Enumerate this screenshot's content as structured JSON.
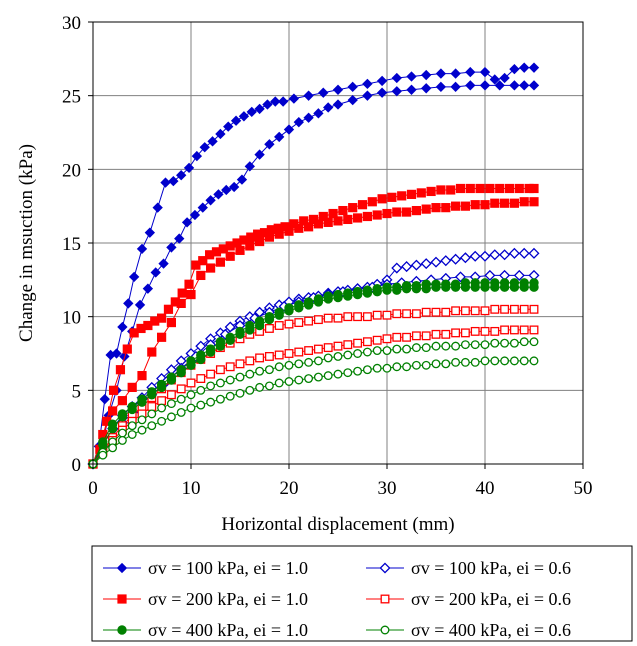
{
  "chart_data": {
    "type": "line",
    "title": "",
    "xlabel": "Horizontal displacement (mm)",
    "ylabel": "Change in msuction  (kPa)",
    "xlim": [
      0,
      50
    ],
    "ylim": [
      0,
      30
    ],
    "xticks": [
      "0",
      "10",
      "20",
      "30",
      "40",
      "50"
    ],
    "yticks": [
      "0",
      "5",
      "10",
      "15",
      "20",
      "25",
      "30"
    ],
    "grid": true,
    "legend_position": "bottom",
    "series": [
      {
        "name": "σv = 100 kPa, ei = 1.0",
        "color": "#0000cc",
        "marker": "diamond-filled",
        "x": [
          0,
          0.6,
          1.2,
          1.8,
          2.4,
          3,
          3.6,
          4.2,
          5,
          5.8,
          6.6,
          7.4,
          8.2,
          9,
          9.8,
          10.6,
          11.4,
          12.2,
          13,
          13.8,
          14.6,
          15.4,
          16.2,
          17,
          17.8,
          18.6,
          19.4,
          20.5,
          22,
          23.5,
          25,
          26.5,
          28,
          29.5,
          31,
          32.5,
          34,
          35.5,
          37,
          38.5,
          40,
          41,
          42,
          43,
          44,
          45
        ],
        "y": [
          0,
          1.2,
          4.4,
          7.4,
          7.5,
          9.3,
          10.9,
          12.7,
          14.6,
          15.7,
          17.4,
          19.1,
          19.2,
          19.6,
          20.1,
          20.9,
          21.5,
          21.9,
          22.4,
          22.9,
          23.3,
          23.6,
          23.9,
          24.1,
          24.4,
          24.6,
          24.6,
          24.8,
          25.0,
          25.2,
          25.4,
          25.6,
          25.8,
          26.0,
          26.2,
          26.3,
          26.4,
          26.5,
          26.5,
          26.6,
          26.6,
          26.1,
          26.2,
          26.8,
          26.9,
          26.9
        ]
      },
      {
        "name": "σv = 100 kPa, ei = 1.0",
        "color": "#0000cc",
        "marker": "diamond-filled",
        "x": [
          0,
          0.8,
          1.6,
          2.4,
          3.2,
          4,
          4.8,
          5.6,
          6.4,
          7.2,
          8,
          8.8,
          9.6,
          10.4,
          11.2,
          12,
          12.8,
          13.6,
          14.4,
          15.2,
          16,
          17,
          18,
          19,
          20,
          21,
          22,
          23,
          24,
          25,
          26.5,
          28,
          29.5,
          31,
          32.5,
          34,
          35.5,
          37,
          38.5,
          40,
          41.5,
          43,
          44,
          45
        ],
        "y": [
          0,
          0.8,
          3.3,
          5.0,
          7.3,
          9.0,
          10.8,
          11.9,
          13.0,
          13.6,
          14.7,
          15.3,
          16.4,
          16.9,
          17.4,
          17.9,
          18.3,
          18.6,
          18.8,
          19.3,
          20.2,
          21.0,
          21.7,
          22.2,
          22.7,
          23.2,
          23.5,
          23.8,
          24.2,
          24.4,
          24.7,
          25.0,
          25.2,
          25.3,
          25.4,
          25.5,
          25.6,
          25.6,
          25.7,
          25.7,
          25.7,
          25.7,
          25.7,
          25.7
        ]
      },
      {
        "name": "σv = 100 kPa, ei = 0.6",
        "color": "#0000cc",
        "marker": "diamond-open",
        "x": [
          0,
          1,
          2,
          3,
          4,
          5,
          6,
          7,
          8,
          9,
          10,
          11,
          12,
          13,
          14,
          15,
          16,
          17,
          18,
          19,
          20,
          21,
          22,
          23,
          24,
          25,
          26,
          27,
          28,
          29,
          30,
          31,
          32,
          33,
          34,
          35,
          36,
          37,
          38,
          39,
          40,
          41,
          42,
          43,
          44,
          45
        ],
        "y": [
          0,
          1.2,
          2.4,
          3.3,
          3.9,
          4.5,
          5.2,
          5.8,
          6.4,
          7.0,
          7.5,
          8.0,
          8.5,
          8.9,
          9.3,
          9.7,
          10.0,
          10.3,
          10.6,
          10.8,
          11.0,
          11.2,
          11.3,
          11.4,
          11.6,
          11.7,
          11.8,
          11.9,
          12.0,
          12.2,
          12.5,
          13.3,
          13.4,
          13.5,
          13.6,
          13.7,
          13.8,
          13.9,
          14.0,
          14.1,
          14.1,
          14.2,
          14.2,
          14.3,
          14.3,
          14.3
        ]
      },
      {
        "name": "σv = 100 kPa, ei = 0.6",
        "color": "#0000cc",
        "marker": "diamond-open",
        "x": [
          0,
          1.5,
          3,
          4.5,
          6,
          7.5,
          9,
          10.5,
          12,
          13.5,
          15,
          16.5,
          18,
          19.5,
          21,
          22.5,
          24,
          25.5,
          27,
          28.5,
          30,
          31.5,
          33,
          34.5,
          36,
          37.5,
          39,
          40.5,
          42,
          43.5,
          45
        ],
        "y": [
          0,
          1.5,
          2.8,
          3.8,
          4.7,
          5.6,
          6.5,
          7.3,
          8.1,
          8.8,
          9.4,
          9.9,
          10.3,
          10.7,
          11.0,
          11.3,
          11.5,
          11.7,
          11.9,
          12.0,
          12.2,
          12.3,
          12.4,
          12.5,
          12.6,
          12.7,
          12.7,
          12.8,
          12.8,
          12.8,
          12.8
        ]
      },
      {
        "name": "σv = 200 kPa, ei = 1.0",
        "color": "#ff0000",
        "marker": "square-filled",
        "x": [
          0,
          0.7,
          1.4,
          2.1,
          2.8,
          3.5,
          4.2,
          4.9,
          5.6,
          6.3,
          7,
          7.7,
          8.4,
          9.1,
          9.8,
          10.5,
          11.2,
          11.9,
          12.6,
          13.3,
          14,
          14.7,
          15.4,
          16.1,
          16.8,
          17.5,
          18.2,
          18.9,
          19.6,
          20.5,
          21.5,
          22.5,
          23.5,
          24.5,
          25.5,
          26.5,
          27.5,
          28.5,
          29.5,
          30.5,
          31.5,
          32.5,
          33.5,
          34.5,
          35.5,
          36.5,
          37.5,
          38.5,
          39.5,
          40.5,
          41.5,
          42.5,
          43.5,
          44.5,
          45
        ],
        "y": [
          0,
          1.0,
          2.9,
          5.0,
          6.4,
          7.8,
          8.9,
          9.2,
          9.4,
          9.7,
          9.9,
          10.5,
          11.0,
          11.6,
          12.2,
          13.5,
          13.8,
          14.2,
          14.4,
          14.6,
          14.8,
          15.0,
          15.2,
          15.4,
          15.6,
          15.7,
          15.9,
          16.0,
          16.1,
          16.3,
          16.5,
          16.6,
          16.8,
          17.0,
          17.2,
          17.4,
          17.6,
          17.8,
          18.0,
          18.1,
          18.2,
          18.3,
          18.4,
          18.5,
          18.6,
          18.6,
          18.7,
          18.7,
          18.7,
          18.7,
          18.7,
          18.7,
          18.7,
          18.7,
          18.7
        ]
      },
      {
        "name": "σv = 200 kPa, ei = 1.0",
        "color": "#ff0000",
        "marker": "square-filled",
        "x": [
          0,
          1,
          2,
          3,
          4,
          5,
          6,
          7,
          8,
          9,
          10,
          11,
          12,
          13,
          14,
          15,
          16,
          17,
          18,
          19,
          20,
          21,
          22,
          23,
          24,
          25,
          26,
          27,
          28,
          29,
          30,
          31,
          32,
          33,
          34,
          35,
          36,
          37,
          38,
          39,
          40,
          41,
          42,
          43,
          44,
          45
        ],
        "y": [
          0,
          2.0,
          3.6,
          4.3,
          5.2,
          6.0,
          7.6,
          8.6,
          9.6,
          10.9,
          11.5,
          12.8,
          13.3,
          13.7,
          14.1,
          14.5,
          14.8,
          15.1,
          15.4,
          15.6,
          15.8,
          16.0,
          16.1,
          16.3,
          16.4,
          16.5,
          16.6,
          16.7,
          16.8,
          16.9,
          17.0,
          17.1,
          17.1,
          17.2,
          17.3,
          17.4,
          17.4,
          17.5,
          17.5,
          17.6,
          17.6,
          17.7,
          17.7,
          17.7,
          17.8,
          17.8
        ]
      },
      {
        "name": "σv = 200 kPa, ei = 0.6",
        "color": "#ff0000",
        "marker": "square-open",
        "x": [
          0,
          1,
          2,
          3,
          4,
          5,
          6,
          7,
          8,
          9,
          10,
          11,
          12,
          13,
          14,
          15,
          16,
          17,
          18,
          19,
          20,
          21,
          22,
          23,
          24,
          25,
          26,
          27,
          28,
          29,
          30,
          31,
          32,
          33,
          34,
          35,
          36,
          37,
          38,
          39,
          40,
          41,
          42,
          43,
          44,
          45
        ],
        "y": [
          0,
          0.9,
          1.8,
          2.6,
          3.3,
          3.9,
          4.5,
          5.1,
          5.7,
          6.2,
          6.7,
          7.1,
          7.5,
          7.9,
          8.2,
          8.5,
          8.8,
          9.0,
          9.2,
          9.4,
          9.5,
          9.6,
          9.7,
          9.8,
          9.9,
          9.9,
          10.0,
          10.0,
          10.0,
          10.1,
          10.1,
          10.2,
          10.2,
          10.2,
          10.3,
          10.3,
          10.3,
          10.4,
          10.4,
          10.4,
          10.4,
          10.5,
          10.5,
          10.5,
          10.5,
          10.5
        ]
      },
      {
        "name": "σv = 200 kPa, ei = 0.6",
        "color": "#ff0000",
        "marker": "square-open",
        "x": [
          0,
          1,
          2,
          3,
          4,
          5,
          6,
          7,
          8,
          9,
          10,
          11,
          12,
          13,
          14,
          15,
          16,
          17,
          18,
          19,
          20,
          21,
          22,
          23,
          24,
          25,
          26,
          27,
          28,
          29,
          30,
          31,
          32,
          33,
          34,
          35,
          36,
          37,
          38,
          39,
          40,
          41,
          42,
          43,
          44,
          45
        ],
        "y": [
          0,
          0.8,
          1.6,
          2.3,
          2.9,
          3.4,
          3.9,
          4.3,
          4.7,
          5.1,
          5.5,
          5.8,
          6.1,
          6.4,
          6.6,
          6.8,
          7.0,
          7.2,
          7.3,
          7.4,
          7.5,
          7.6,
          7.7,
          7.8,
          7.9,
          8.0,
          8.1,
          8.2,
          8.3,
          8.4,
          8.5,
          8.6,
          8.6,
          8.7,
          8.7,
          8.8,
          8.8,
          8.9,
          8.9,
          9.0,
          9.0,
          9.0,
          9.1,
          9.1,
          9.1,
          9.1
        ]
      },
      {
        "name": "σv = 400 kPa, ei = 1.0",
        "color": "#008000",
        "marker": "circle-filled",
        "x": [
          0,
          1,
          2,
          3,
          4,
          5,
          6,
          7,
          8,
          9,
          10,
          11,
          12,
          13,
          14,
          15,
          16,
          17,
          18,
          19,
          20,
          21,
          22,
          23,
          24,
          25,
          26,
          27,
          28,
          29,
          30,
          31,
          32,
          33,
          34,
          35,
          36,
          37,
          38,
          39,
          40,
          41,
          42,
          43,
          44,
          45
        ],
        "y": [
          0,
          1.5,
          2.7,
          3.4,
          3.9,
          4.4,
          4.9,
          5.4,
          5.9,
          6.4,
          7.0,
          7.4,
          7.8,
          8.3,
          8.6,
          9.0,
          9.4,
          9.7,
          10.0,
          10.3,
          10.6,
          10.8,
          11.0,
          11.2,
          11.4,
          11.5,
          11.6,
          11.7,
          11.8,
          11.9,
          12.0,
          12.0,
          12.1,
          12.1,
          12.2,
          12.2,
          12.2,
          12.2,
          12.3,
          12.3,
          12.3,
          12.3,
          12.3,
          12.3,
          12.3,
          12.3
        ]
      },
      {
        "name": "σv = 400 kPa, ei = 1.0",
        "color": "#008000",
        "marker": "circle-filled",
        "x": [
          0,
          1,
          2,
          3,
          4,
          5,
          6,
          7,
          8,
          9,
          10,
          11,
          12,
          13,
          14,
          15,
          16,
          17,
          18,
          19,
          20,
          21,
          22,
          23,
          24,
          25,
          26,
          27,
          28,
          29,
          30,
          31,
          32,
          33,
          34,
          35,
          36,
          37,
          38,
          39,
          40,
          41,
          42,
          43,
          44,
          45
        ],
        "y": [
          0,
          1.3,
          2.4,
          3.2,
          3.7,
          4.2,
          4.7,
          5.2,
          5.7,
          6.2,
          6.7,
          7.1,
          7.6,
          8.0,
          8.4,
          8.8,
          9.1,
          9.4,
          9.8,
          10.1,
          10.4,
          10.6,
          10.8,
          11.0,
          11.2,
          11.3,
          11.4,
          11.5,
          11.6,
          11.7,
          11.8,
          11.8,
          11.9,
          11.9,
          11.9,
          12.0,
          12.0,
          12.0,
          12.0,
          12.0,
          12.0,
          12.0,
          12.0,
          12.0,
          12.0,
          12.0
        ]
      },
      {
        "name": "σv = 400 kPa, ei = 0.6",
        "color": "#008000",
        "marker": "circle-open",
        "x": [
          0,
          1,
          2,
          3,
          4,
          5,
          6,
          7,
          8,
          9,
          10,
          11,
          12,
          13,
          14,
          15,
          16,
          17,
          18,
          19,
          20,
          21,
          22,
          23,
          24,
          25,
          26,
          27,
          28,
          29,
          30,
          31,
          32,
          33,
          34,
          35,
          36,
          37,
          38,
          39,
          40,
          41,
          42,
          43,
          44,
          45
        ],
        "y": [
          0,
          0.8,
          1.5,
          2.1,
          2.6,
          3.0,
          3.4,
          3.8,
          4.1,
          4.4,
          4.7,
          5.0,
          5.3,
          5.5,
          5.7,
          5.9,
          6.1,
          6.3,
          6.4,
          6.6,
          6.7,
          6.8,
          6.9,
          7.0,
          7.2,
          7.3,
          7.4,
          7.5,
          7.6,
          7.7,
          7.7,
          7.8,
          7.8,
          7.9,
          7.9,
          8.0,
          8.0,
          8.0,
          8.1,
          8.1,
          8.1,
          8.2,
          8.2,
          8.2,
          8.3,
          8.3
        ]
      },
      {
        "name": "σv = 400 kPa, ei = 0.6",
        "color": "#008000",
        "marker": "circle-open",
        "x": [
          0,
          1,
          2,
          3,
          4,
          5,
          6,
          7,
          8,
          9,
          10,
          11,
          12,
          13,
          14,
          15,
          16,
          17,
          18,
          19,
          20,
          21,
          22,
          23,
          24,
          25,
          26,
          27,
          28,
          29,
          30,
          31,
          32,
          33,
          34,
          35,
          36,
          37,
          38,
          39,
          40,
          41,
          42,
          43,
          44,
          45
        ],
        "y": [
          0,
          0.6,
          1.1,
          1.6,
          2.0,
          2.3,
          2.6,
          2.9,
          3.2,
          3.5,
          3.8,
          4.0,
          4.2,
          4.4,
          4.6,
          4.8,
          5.0,
          5.2,
          5.3,
          5.5,
          5.6,
          5.7,
          5.8,
          5.9,
          6.0,
          6.1,
          6.2,
          6.3,
          6.4,
          6.5,
          6.5,
          6.6,
          6.6,
          6.7,
          6.7,
          6.8,
          6.8,
          6.9,
          6.9,
          6.9,
          7.0,
          7.0,
          7.0,
          7.0,
          7.0,
          7.0
        ]
      }
    ],
    "legend": [
      {
        "label": "σv = 100 kPa, ei = 1.0",
        "color": "#0000cc",
        "marker": "diamond-filled"
      },
      {
        "label": "σv = 100 kPa, ei = 0.6",
        "color": "#0000cc",
        "marker": "diamond-open"
      },
      {
        "label": "σv = 200 kPa, ei = 1.0",
        "color": "#ff0000",
        "marker": "square-filled"
      },
      {
        "label": "σv = 200 kPa, ei = 0.6",
        "color": "#ff0000",
        "marker": "square-open"
      },
      {
        "label": "σv = 400 kPa, ei = 1.0",
        "color": "#008000",
        "marker": "circle-filled"
      },
      {
        "label": "σv = 400 kPa, ei = 0.6",
        "color": "#008000",
        "marker": "circle-open"
      }
    ]
  }
}
